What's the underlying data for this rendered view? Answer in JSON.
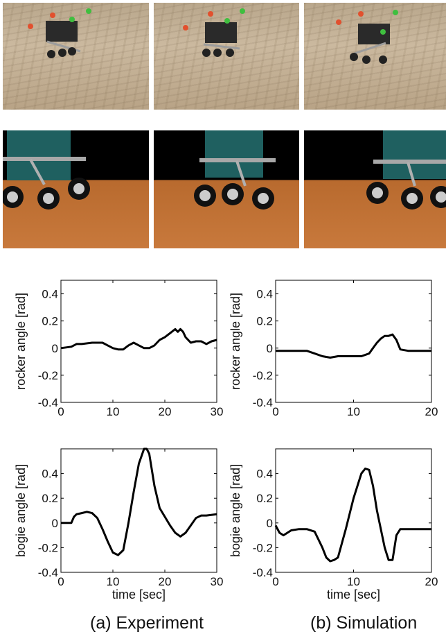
{
  "captions": {
    "left": "(a) Experiment",
    "right": "(b) Simulation"
  },
  "chart_data": [
    {
      "type": "line",
      "panel": "experiment-rocker",
      "xlabel": "",
      "ylabel": "rocker angle [rad]",
      "xlim": [
        0,
        30
      ],
      "ylim": [
        -0.4,
        0.5
      ],
      "xticks": [
        0,
        10,
        20,
        30
      ],
      "yticks": [
        -0.4,
        -0.2,
        0,
        0.2,
        0.4
      ],
      "grid": false,
      "x": [
        0,
        2,
        3,
        4,
        6,
        8,
        9,
        10,
        11,
        12,
        13,
        14,
        15,
        16,
        17,
        18,
        19,
        20,
        21,
        22,
        22.5,
        23,
        23.5,
        24,
        25,
        26,
        27,
        28,
        29,
        30
      ],
      "y": [
        0.0,
        0.01,
        0.03,
        0.03,
        0.04,
        0.04,
        0.02,
        0.0,
        -0.01,
        -0.01,
        0.02,
        0.04,
        0.02,
        0.0,
        0.0,
        0.02,
        0.06,
        0.08,
        0.11,
        0.14,
        0.12,
        0.14,
        0.12,
        0.08,
        0.04,
        0.05,
        0.05,
        0.03,
        0.05,
        0.06
      ]
    },
    {
      "type": "line",
      "panel": "simulation-rocker",
      "xlabel": "",
      "ylabel": "rocker angle [rad]",
      "xlim": [
        0,
        20
      ],
      "ylim": [
        -0.4,
        0.5
      ],
      "xticks": [
        0,
        10,
        20
      ],
      "yticks": [
        -0.4,
        -0.2,
        0,
        0.2,
        0.4
      ],
      "grid": false,
      "x": [
        0,
        2,
        3,
        4,
        5,
        6,
        7,
        8,
        9,
        10,
        11,
        12,
        12.5,
        13,
        13.5,
        14,
        14.5,
        15,
        15.5,
        16,
        17,
        18,
        19,
        20
      ],
      "y": [
        -0.02,
        -0.02,
        -0.02,
        -0.02,
        -0.04,
        -0.06,
        -0.07,
        -0.06,
        -0.06,
        -0.06,
        -0.06,
        -0.04,
        0.0,
        0.04,
        0.07,
        0.09,
        0.09,
        0.1,
        0.06,
        -0.01,
        -0.02,
        -0.02,
        -0.02,
        -0.02
      ]
    },
    {
      "type": "line",
      "panel": "experiment-bogie",
      "xlabel": "time [sec]",
      "ylabel": "bogie angle [rad]",
      "xlim": [
        0,
        30
      ],
      "ylim": [
        -0.4,
        0.6
      ],
      "xticks": [
        0,
        10,
        20,
        30
      ],
      "yticks": [
        -0.4,
        -0.2,
        0,
        0.2,
        0.4
      ],
      "grid": false,
      "x": [
        0,
        1,
        2,
        2.5,
        3,
        4,
        5,
        6,
        7,
        8,
        9,
        10,
        11,
        12,
        13,
        14,
        15,
        16,
        16.5,
        17,
        18,
        19,
        20,
        21,
        22,
        23,
        24,
        25,
        26,
        27,
        28,
        30
      ],
      "y": [
        0.0,
        0.0,
        0.0,
        0.05,
        0.07,
        0.08,
        0.09,
        0.08,
        0.04,
        -0.05,
        -0.15,
        -0.24,
        -0.26,
        -0.22,
        0.0,
        0.25,
        0.48,
        0.6,
        0.6,
        0.56,
        0.3,
        0.12,
        0.05,
        -0.02,
        -0.08,
        -0.11,
        -0.08,
        -0.02,
        0.04,
        0.06,
        0.06,
        0.07
      ]
    },
    {
      "type": "line",
      "panel": "simulation-bogie",
      "xlabel": "time [sec]",
      "ylabel": "bogie angle [rad]",
      "xlim": [
        0,
        20
      ],
      "ylim": [
        -0.4,
        0.6
      ],
      "xticks": [
        0,
        10,
        20
      ],
      "yticks": [
        -0.4,
        -0.2,
        0,
        0.2,
        0.4
      ],
      "grid": false,
      "x": [
        0,
        0.5,
        1,
        2,
        3,
        4,
        5,
        6,
        6.5,
        7,
        7.5,
        8,
        9,
        10,
        11,
        11.5,
        12,
        12.5,
        13,
        14,
        14.5,
        15,
        15.5,
        16,
        17,
        18,
        19,
        20
      ],
      "y": [
        -0.02,
        -0.08,
        -0.1,
        -0.06,
        -0.05,
        -0.05,
        -0.07,
        -0.2,
        -0.28,
        -0.31,
        -0.3,
        -0.28,
        -0.05,
        0.2,
        0.4,
        0.44,
        0.43,
        0.3,
        0.1,
        -0.2,
        -0.3,
        -0.3,
        -0.1,
        -0.05,
        -0.05,
        -0.05,
        -0.05,
        -0.05
      ]
    }
  ]
}
